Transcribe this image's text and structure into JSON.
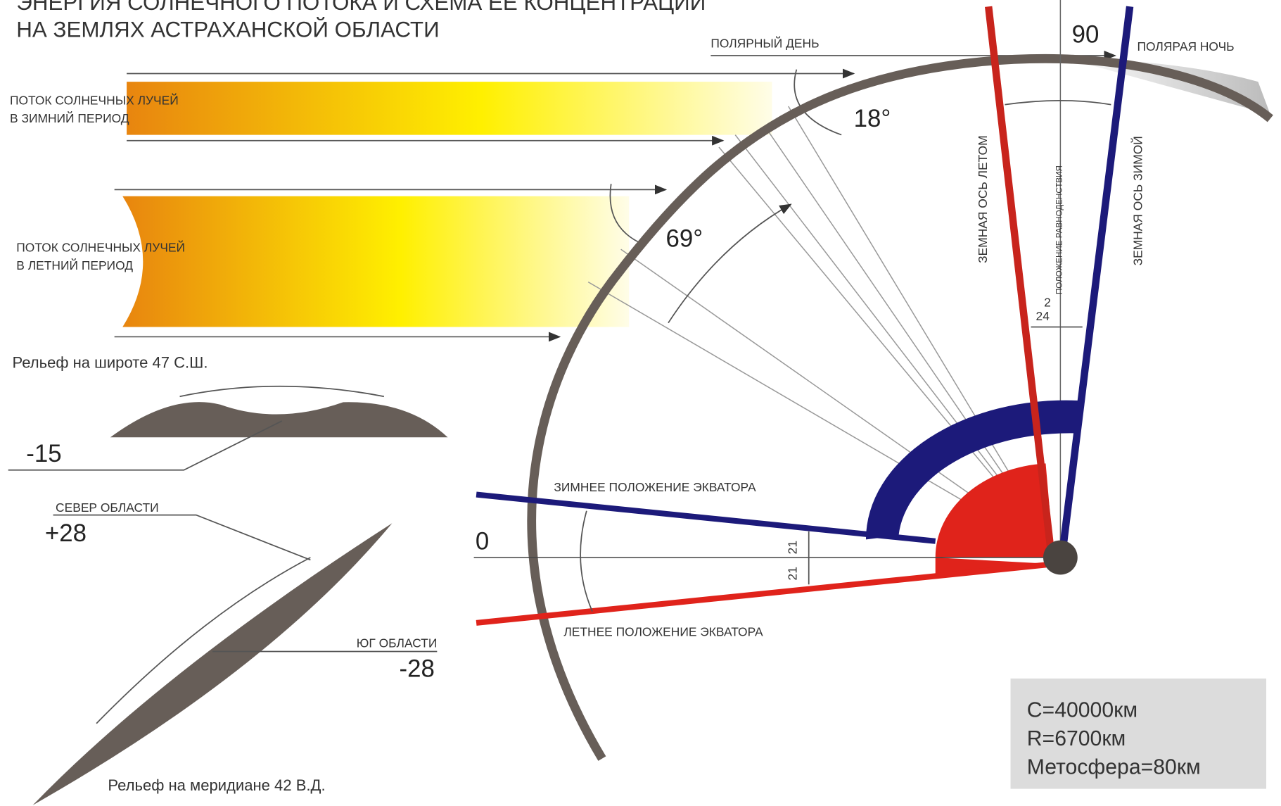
{
  "title": [
    "ЭНЕРГИЯ СОЛНЕЧНОГО ПОТОКА И СХЕМА ЕЕ КОНЦЕНТРАЦИИ",
    "НА ЗЕМЛЯХ АСТРАХАНСКОЙ ОБЛАСТИ"
  ],
  "top": {
    "polar_day": "ПОЛЯРНЫЙ ДЕНЬ",
    "polar_night": "ПОЛЯРАЯ НОЧЬ",
    "angle_90": "90"
  },
  "winter_flow": [
    "ПОТОК СОЛНЕЧНЫХ ЛУЧЕЙ",
    "В ЗИМНИЙ ПЕРИОД"
  ],
  "summer_flow": [
    "ПОТОК СОЛНЕЧНЫХ ЛУЧЕЙ",
    "В ЛЕТНИЙ ПЕРИОД"
  ],
  "angles": {
    "winter": "18°",
    "summer": "69°",
    "tilt": "24",
    "small": "2",
    "eq_up": "21",
    "eq_down": "21",
    "zero": "0"
  },
  "axes": {
    "summer": "ЗЕМНАЯ ОСЬ ЛЕТОМ",
    "equinox": "ПОЛОЖЕНИЕ РАВНОДЕНСТВИЯ",
    "winter": "ЗЕМНАЯ ОСЬ ЗИМОЙ"
  },
  "equator": {
    "winter": "ЗИМНЕЕ ПОЛОЖЕНИЕ ЭКВАТОРА",
    "summer": "ЛЕТНЕЕ ПОЛОЖЕНИЕ ЭКВАТОРА"
  },
  "relief_lat": {
    "label": "Рельеф на широте 47 С.Ш.",
    "value": "-15"
  },
  "relief_mer": {
    "north": "СЕВЕР ОБЛАСТИ",
    "north_value": "+28",
    "south": "ЮГ ОБЛАСТИ",
    "south_value": "-28",
    "label": "Рельеф на меридиане 42 В.Д."
  },
  "facts": [
    "C=40000км",
    "R=6700км",
    "Метосфера=80км"
  ]
}
